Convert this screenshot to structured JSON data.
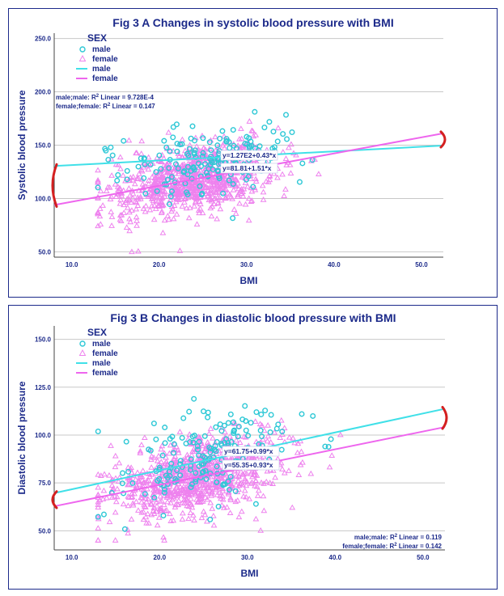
{
  "chart_data": [
    {
      "type": "scatter",
      "title": "Fig 3 A Changes in systolic blood pressure with BMI",
      "xlabel": "BMI",
      "ylabel": "Systolic blood pressure",
      "xlim": [
        8,
        52.5
      ],
      "ylim": [
        45,
        255
      ],
      "xticks": [
        "10.0",
        "20.0",
        "30.0",
        "40.0",
        "50.0"
      ],
      "yticks": [
        "50.0",
        "100.0",
        "150.0",
        "200.0",
        "250.0"
      ],
      "legend": {
        "title": "SEX",
        "entries": [
          {
            "label": "male",
            "kind": "circle",
            "color": "#2ec8d6"
          },
          {
            "label": "female",
            "kind": "triangle",
            "color": "#ee82ee"
          },
          {
            "label": "male",
            "kind": "line",
            "color": "#40e0e8"
          },
          {
            "label": "female",
            "kind": "line",
            "color": "#ee66ee"
          }
        ]
      },
      "r2": {
        "male_prefix": "male;male: R",
        "male_value": " Linear = 9.728E-4",
        "female_prefix": "female;female: R",
        "female_value": " Linear = 0.147",
        "sup": "2"
      },
      "series": [
        {
          "name": "male",
          "intercept": 127,
          "slope": 0.43,
          "equation": "y=1.27E2+0.43*x",
          "cloud": {
            "cx": 25.5,
            "cy": 135,
            "sx": 5,
            "sy": 17,
            "n": 170
          }
        },
        {
          "name": "female",
          "intercept": 81.81,
          "slope": 1.51,
          "equation": "y=81.81+1.51*x",
          "cloud": {
            "cx": 24,
            "cy": 118,
            "sx": 4.6,
            "sy": 16,
            "n": 900
          }
        }
      ]
    },
    {
      "type": "scatter",
      "title": "Fig 3 B Changes in diastolic blood pressure with BMI",
      "xlabel": "BMI",
      "ylabel": "Diastolic blood pressure",
      "xlim": [
        8,
        52.5
      ],
      "ylim": [
        40,
        157
      ],
      "xticks": [
        "10.0",
        "20.0",
        "30.0",
        "40.0",
        "50.0"
      ],
      "yticks": [
        "50.0",
        "75.0",
        "100.0",
        "125.0",
        "150.0"
      ],
      "legend": {
        "title": "SEX",
        "entries": [
          {
            "label": "male",
            "kind": "circle",
            "color": "#2ec8d6"
          },
          {
            "label": "female",
            "kind": "triangle",
            "color": "#ee82ee"
          },
          {
            "label": "male",
            "kind": "line",
            "color": "#40e0e8"
          },
          {
            "label": "female",
            "kind": "line",
            "color": "#ee66ee"
          }
        ]
      },
      "r2": {
        "male_prefix": "male;male: R",
        "male_value": " Linear = 0.119",
        "female_prefix": "female;female: R",
        "female_value": " Linear = 0.142",
        "sup": "2"
      },
      "series": [
        {
          "name": "male",
          "intercept": 61.75,
          "slope": 0.99,
          "equation": "y=61.75+0.99*x",
          "cloud": {
            "cx": 25.5,
            "cy": 88,
            "sx": 5,
            "sy": 11,
            "n": 170
          }
        },
        {
          "name": "female",
          "intercept": 55.35,
          "slope": 0.93,
          "equation": "y=55.35+0.93*x",
          "cloud": {
            "cx": 24.5,
            "cy": 78,
            "sx": 4.8,
            "sy": 10,
            "n": 900
          }
        }
      ]
    }
  ]
}
